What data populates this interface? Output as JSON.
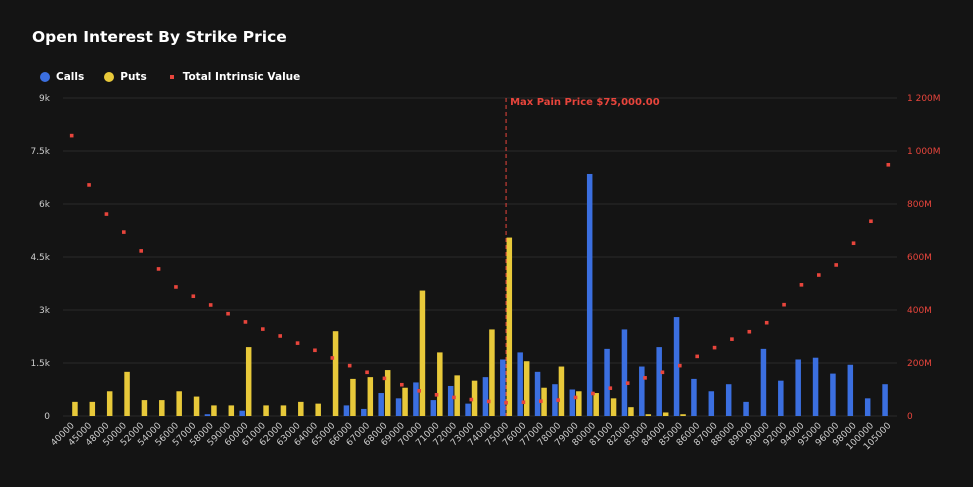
{
  "title": "Open Interest By Strike Price",
  "legend": {
    "calls": "Calls",
    "puts": "Puts",
    "intrinsic": "Total Intrinsic Value"
  },
  "colors": {
    "calls": "#3b6fe0",
    "puts": "#e8c93a",
    "intrinsic": "#e8453c",
    "grid": "#2a2a2a",
    "axis_text": "#cccccc",
    "right_axis_text": "#e8453c"
  },
  "chart_data": {
    "type": "bar",
    "title": "Open Interest By Strike Price",
    "categories": [
      "40000",
      "45000",
      "48000",
      "50000",
      "52000",
      "54000",
      "56000",
      "57000",
      "58000",
      "59000",
      "60000",
      "61000",
      "62000",
      "63000",
      "64000",
      "65000",
      "66000",
      "67000",
      "68000",
      "69000",
      "70000",
      "71000",
      "72000",
      "73000",
      "74000",
      "75000",
      "76000",
      "77000",
      "78000",
      "79000",
      "80000",
      "81000",
      "82000",
      "83000",
      "84000",
      "85000",
      "86000",
      "87000",
      "88000",
      "89000",
      "90000",
      "92000",
      "94000",
      "95000",
      "96000",
      "98000",
      "100000",
      "105000"
    ],
    "series": [
      {
        "name": "Calls",
        "axis": "left",
        "values": [
          0,
          0,
          0,
          0,
          0,
          0,
          0,
          0,
          50,
          0,
          150,
          0,
          0,
          0,
          0,
          0,
          300,
          200,
          650,
          500,
          950,
          450,
          850,
          350,
          1100,
          1600,
          1800,
          1250,
          900,
          750,
          6850,
          1900,
          2450,
          1400,
          1950,
          2800,
          1050,
          700,
          900,
          400,
          1900,
          1000,
          1600,
          1650,
          1200,
          1450,
          500,
          900
        ]
      },
      {
        "name": "Puts",
        "axis": "left",
        "values": [
          400,
          400,
          700,
          1250,
          450,
          450,
          700,
          550,
          300,
          300,
          1950,
          300,
          300,
          400,
          350,
          2400,
          1050,
          1100,
          1300,
          800,
          3550,
          1800,
          1150,
          1000,
          2450,
          5050,
          1550,
          800,
          1400,
          700,
          650,
          500,
          250,
          50,
          100,
          50,
          0,
          0,
          0,
          0,
          0,
          0,
          0,
          0,
          0,
          0,
          0,
          0
        ]
      },
      {
        "name": "Total Intrinsic Value",
        "axis": "right",
        "type": "scatter",
        "values": [
          1058,
          872,
          762,
          694,
          623,
          555,
          487,
          452,
          419,
          386,
          355,
          328,
          302,
          275,
          248,
          219,
          190,
          165,
          142,
          118,
          95,
          80,
          70,
          62,
          55,
          50,
          52,
          56,
          60,
          70,
          85,
          105,
          124,
          144,
          165,
          190,
          225,
          258,
          290,
          318,
          352,
          420,
          495,
          532,
          570,
          652,
          735,
          948
        ]
      }
    ],
    "y_left": {
      "ticks": [
        "0",
        "1.5k",
        "3k",
        "4.5k",
        "6k",
        "7.5k",
        "9k"
      ],
      "ylim": [
        0,
        9000
      ]
    },
    "y_right": {
      "ticks": [
        "0",
        "200M",
        "400M",
        "600M",
        "800M",
        "1 000M",
        "1 200M"
      ],
      "ylim": [
        0,
        1200
      ]
    },
    "annotation": {
      "label": "Max Pain Price $75,000.00",
      "category": "75000"
    },
    "grid": true,
    "legend_position": "top-left"
  }
}
